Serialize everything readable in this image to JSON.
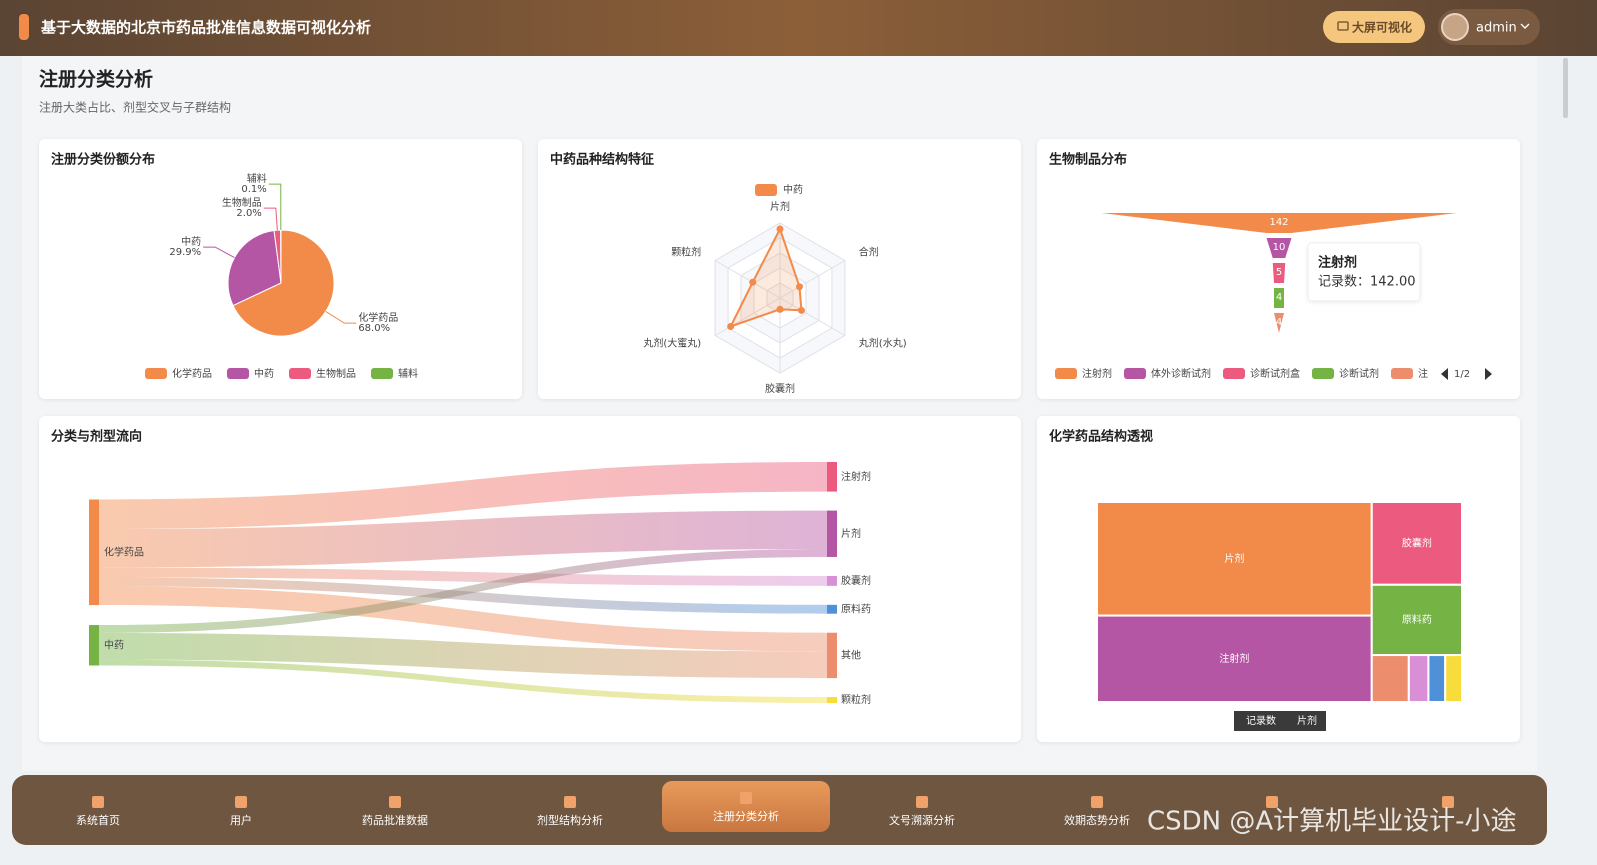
{
  "header": {
    "title": "基于大数据的北京市药品批准信息数据可视化分析",
    "button": "大屏可视化",
    "user": "admin"
  },
  "page": {
    "title": "注册分类分析",
    "subtitle": "注册大类占比、剂型交叉与子群结构"
  },
  "chart_data": [
    {
      "type": "pie",
      "title": "注册分类份额分布",
      "categories": [
        "化学药品",
        "中药",
        "生物制品",
        "辅料"
      ],
      "values": [
        68.0,
        29.9,
        2.0,
        0.1
      ],
      "value_labels": [
        "68.0%",
        "29.9%",
        "2.0%",
        "0.1%"
      ],
      "colors": [
        "#f28a4a",
        "#b556a4",
        "#ec5b7f",
        "#74b344"
      ],
      "legend": "bottom"
    },
    {
      "type": "radar",
      "title": "中药品种结构特征",
      "categories": [
        "片剂",
        "合剂",
        "丸剂(水丸)",
        "胶囊剂",
        "丸剂(大蜜丸)",
        "颗粒剂"
      ],
      "series": [
        {
          "name": "中药",
          "color": "#f28a4a",
          "values": [
            92,
            30,
            33,
            15,
            76,
            42
          ]
        }
      ],
      "rlim": [
        0,
        100
      ],
      "legend": "top"
    },
    {
      "type": "funnel",
      "title": "生物制品分布",
      "categories": [
        "注射剂",
        "体外诊断试剂",
        "诊断试剂盒",
        "诊断试剂",
        "注"
      ],
      "values": [
        142,
        10,
        5,
        4,
        4
      ],
      "colors": [
        "#f28a4a",
        "#b556a4",
        "#ec5b7f",
        "#74b344",
        "#ec8d6d"
      ],
      "legend": "bottom",
      "legend_page": "1/2",
      "tooltip": {
        "title": "注射剂",
        "text": "记录数：142.00"
      }
    },
    {
      "type": "sankey",
      "title": "分类与剂型流向",
      "nodes": [
        {
          "name": "化学药品",
          "color": "#f28a4a"
        },
        {
          "name": "中药",
          "color": "#74b344"
        },
        {
          "name": "注射剂",
          "color": "#ec5b7f"
        },
        {
          "name": "片剂",
          "color": "#b556a4"
        },
        {
          "name": "胶囊剂",
          "color": "#d98fd6"
        },
        {
          "name": "原料药",
          "color": "#4f90d9"
        },
        {
          "name": "其他",
          "color": "#ec8d6d"
        },
        {
          "name": "颗粒剂",
          "color": "#f7dd3c"
        }
      ],
      "links": [
        {
          "source": 0,
          "target": 2,
          "value": 30
        },
        {
          "source": 0,
          "target": 3,
          "value": 39
        },
        {
          "source": 0,
          "target": 4,
          "value": 10
        },
        {
          "source": 0,
          "target": 5,
          "value": 9
        },
        {
          "source": 0,
          "target": 6,
          "value": 19
        },
        {
          "source": 1,
          "target": 3,
          "value": 8
        },
        {
          "source": 1,
          "target": 6,
          "value": 27
        },
        {
          "source": 1,
          "target": 7,
          "value": 6
        }
      ]
    },
    {
      "type": "treemap",
      "title": "化学药品结构透视",
      "categories": [
        "片剂",
        "注射剂",
        "胶囊剂",
        "原料药",
        null,
        null,
        null,
        null
      ],
      "values": [
        30500,
        23200,
        7300,
        6200,
        1700,
        900,
        770,
        770
      ],
      "colors": [
        "#f28a4a",
        "#b556a4",
        "#ec5b7f",
        "#74b344",
        "#ec8d6d",
        "#d98fd6",
        "#4f90d9",
        "#f7dd3c"
      ],
      "breadcrumb": [
        "记录数",
        "片剂"
      ]
    }
  ],
  "nav": {
    "items": [
      "系统首页",
      "用户",
      "药品批准数据",
      "剂型结构分析",
      "注册分类分析",
      "文号溯源分析",
      "效期态势分析",
      null,
      null
    ],
    "active": 4
  },
  "watermark": "CSDN @A计算机毕业设计-小途"
}
